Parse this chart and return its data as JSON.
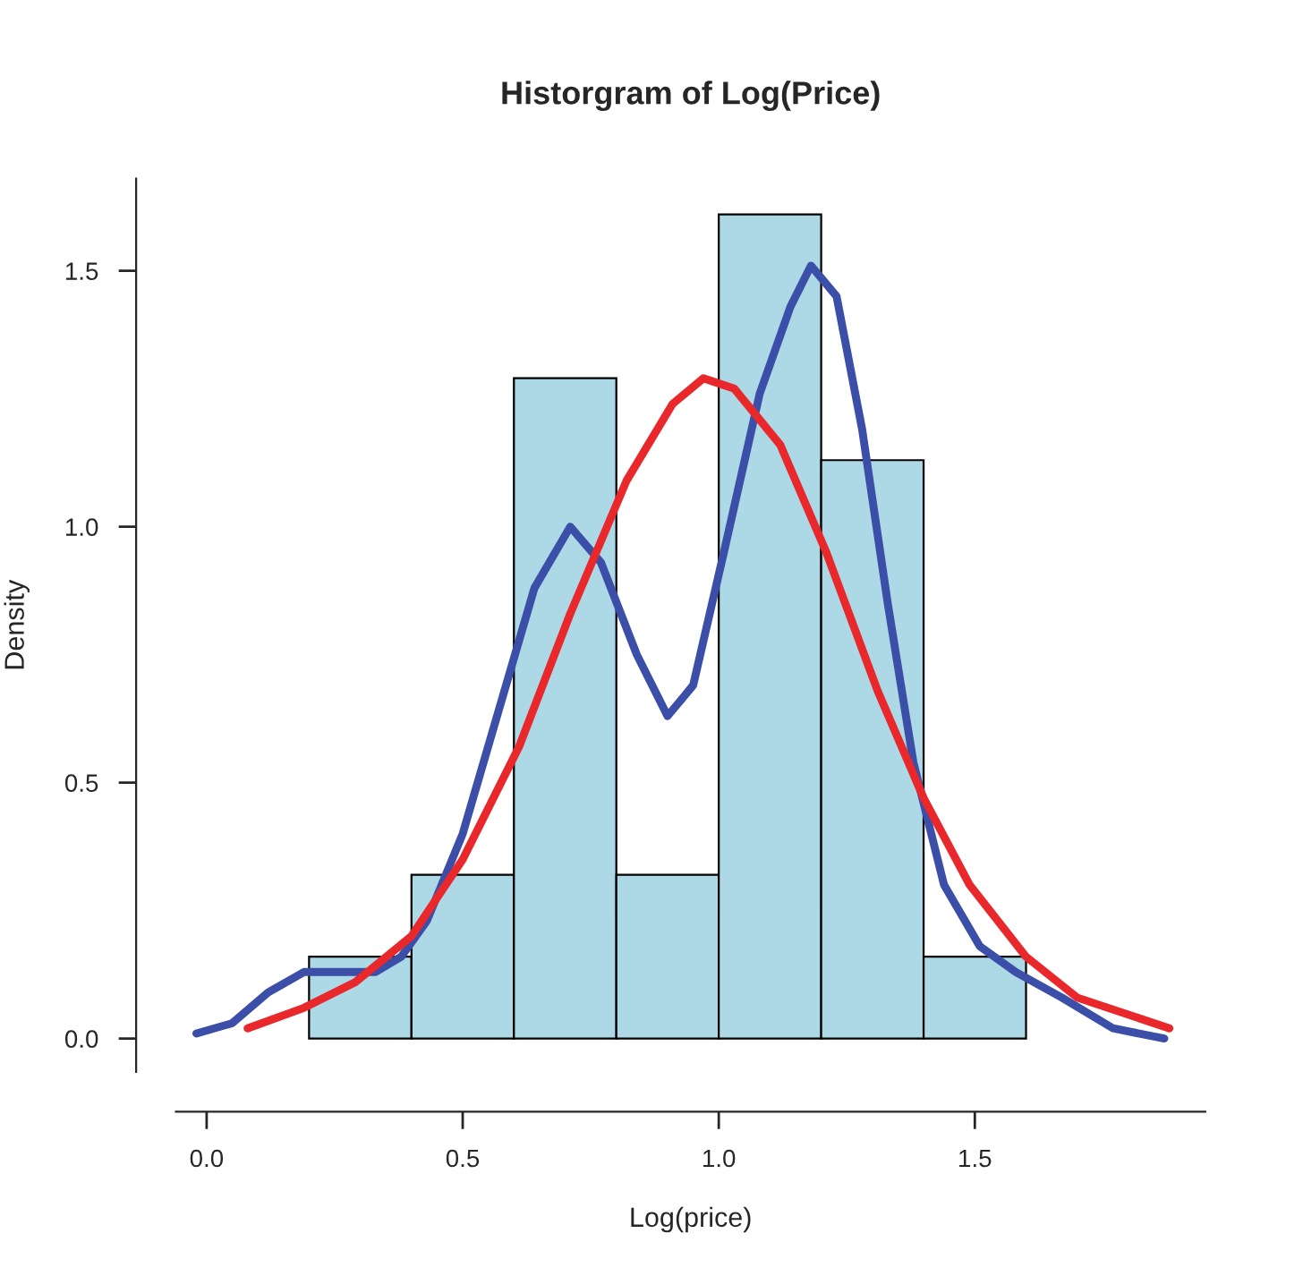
{
  "chart_data": {
    "type": "histogram",
    "title": "Historgram of Log(Price)",
    "xlabel": "Log(price)",
    "ylabel": "Density",
    "bins": [
      0.2,
      0.4,
      0.6,
      0.8,
      1.0,
      1.2,
      1.4,
      1.6
    ],
    "values": [
      0.16,
      0.32,
      1.29,
      0.32,
      1.61,
      1.13,
      0.16
    ],
    "color": "#add8e6",
    "xlim": [
      -0.06,
      1.95
    ],
    "ylim": [
      -0.065,
      1.68
    ],
    "xticks": [
      {
        "value": 0,
        "label": "0.0"
      },
      0.5,
      {
        "value": 1,
        "label": "1.0"
      },
      1.5
    ],
    "yticks": [
      {
        "value": 0,
        "label": "0.0"
      },
      0.5,
      {
        "value": 1,
        "label": "1.0"
      },
      1.5
    ],
    "grid": false,
    "series": [
      {
        "type": "line",
        "color": "#3b4ea8",
        "x": [
          -0.02,
          0.05,
          0.12,
          0.19,
          0.26,
          0.33,
          0.38,
          0.43,
          0.5,
          0.57,
          0.64,
          0.71,
          0.77,
          0.84,
          0.9,
          0.95,
          1.01,
          1.08,
          1.14,
          1.18,
          1.23,
          1.28,
          1.33,
          1.38,
          1.44,
          1.51,
          1.58,
          1.67,
          1.77,
          1.87
        ],
        "values": [
          0.01,
          0.03,
          0.09,
          0.13,
          0.13,
          0.13,
          0.16,
          0.23,
          0.4,
          0.64,
          0.88,
          1.0,
          0.93,
          0.75,
          0.63,
          0.69,
          0.95,
          1.26,
          1.43,
          1.51,
          1.45,
          1.19,
          0.85,
          0.54,
          0.3,
          0.18,
          0.13,
          0.08,
          0.02,
          0.0
        ]
      },
      {
        "type": "line",
        "color": "#e8282a",
        "x": [
          0.08,
          0.19,
          0.29,
          0.4,
          0.5,
          0.61,
          0.71,
          0.82,
          0.91,
          0.97,
          1.03,
          1.12,
          1.21,
          1.31,
          1.4,
          1.49,
          1.6,
          1.7,
          1.88
        ],
        "values": [
          0.02,
          0.06,
          0.11,
          0.2,
          0.35,
          0.57,
          0.83,
          1.09,
          1.24,
          1.29,
          1.27,
          1.16,
          0.95,
          0.68,
          0.47,
          0.3,
          0.16,
          0.08,
          0.02
        ]
      }
    ]
  }
}
